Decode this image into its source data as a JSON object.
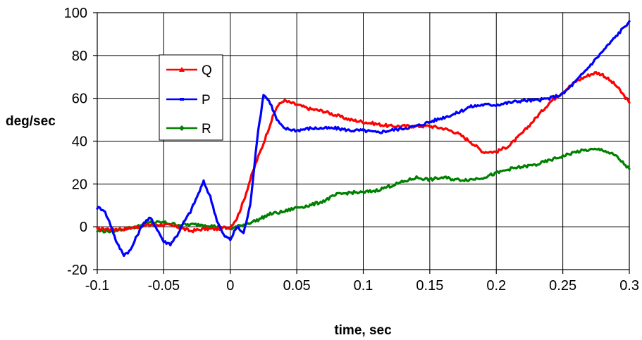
{
  "chart_data": {
    "type": "line",
    "title": "",
    "xlabel": "time, sec",
    "ylabel": "deg/sec",
    "xlim": [
      -0.1,
      0.3
    ],
    "ylim": [
      -20,
      100
    ],
    "xticks": [
      -0.1,
      -0.05,
      0,
      0.05,
      0.1,
      0.15,
      0.2,
      0.25,
      0.3
    ],
    "xtick_labels": [
      "-0.1",
      "-0.05",
      "0",
      "0.05",
      "0.1",
      "0.15",
      "0.2",
      "0.25",
      "0.3"
    ],
    "yticks": [
      -20,
      0,
      20,
      40,
      60,
      80,
      100
    ],
    "ytick_labels": [
      "-20",
      "0",
      "20",
      "40",
      "60",
      "80",
      "100"
    ],
    "grid": true,
    "legend_position": "upper-left",
    "series": [
      {
        "name": "Q",
        "color": "#ff0000",
        "marker": "triangle",
        "x": [
          -0.1,
          -0.09,
          -0.08,
          -0.07,
          -0.06,
          -0.05,
          -0.04,
          -0.03,
          -0.02,
          -0.01,
          0,
          0.005,
          0.01,
          0.015,
          0.02,
          0.025,
          0.03,
          0.035,
          0.04,
          0.05,
          0.06,
          0.07,
          0.08,
          0.09,
          0.1,
          0.11,
          0.12,
          0.13,
          0.14,
          0.15,
          0.16,
          0.17,
          0.18,
          0.19,
          0.2,
          0.21,
          0.22,
          0.23,
          0.24,
          0.25,
          0.26,
          0.27,
          0.275,
          0.28,
          0.29,
          0.3
        ],
        "values": [
          -1,
          -1,
          -1,
          0,
          1,
          1,
          0,
          -2,
          -1,
          -1,
          0,
          4,
          12,
          22,
          31,
          39,
          48,
          56,
          59,
          57,
          55,
          54,
          52,
          50,
          49,
          48,
          47,
          47,
          47,
          47,
          46,
          44,
          40,
          35,
          35,
          38,
          44,
          51,
          58,
          63,
          68,
          71,
          72,
          71,
          66,
          58
        ]
      },
      {
        "name": "P",
        "color": "#0000ff",
        "marker": "dash",
        "x": [
          -0.1,
          -0.095,
          -0.09,
          -0.085,
          -0.08,
          -0.075,
          -0.07,
          -0.065,
          -0.06,
          -0.055,
          -0.05,
          -0.045,
          -0.04,
          -0.035,
          -0.03,
          -0.025,
          -0.02,
          -0.015,
          -0.01,
          -0.005,
          0,
          0.005,
          0.01,
          0.015,
          0.02,
          0.025,
          0.03,
          0.035,
          0.04,
          0.05,
          0.06,
          0.07,
          0.08,
          0.09,
          0.1,
          0.11,
          0.12,
          0.13,
          0.14,
          0.15,
          0.16,
          0.17,
          0.18,
          0.19,
          0.2,
          0.21,
          0.22,
          0.23,
          0.24,
          0.25,
          0.26,
          0.27,
          0.28,
          0.29,
          0.3
        ],
        "values": [
          9,
          8,
          1,
          -8,
          -13,
          -11,
          -4,
          2,
          4,
          -1,
          -7,
          -8,
          -4,
          2,
          7,
          14,
          21,
          14,
          3,
          -4,
          -6,
          0,
          -3,
          10,
          40,
          62,
          58,
          50,
          46,
          45,
          46,
          46,
          46,
          45,
          45,
          44,
          45,
          46,
          47,
          49,
          51,
          53,
          56,
          57,
          57,
          58,
          59,
          59,
          60,
          62,
          68,
          75,
          82,
          89,
          96
        ]
      },
      {
        "name": "R",
        "color": "#008000",
        "marker": "diamond",
        "x": [
          -0.1,
          -0.09,
          -0.08,
          -0.07,
          -0.06,
          -0.05,
          -0.04,
          -0.03,
          -0.02,
          -0.01,
          0,
          0.01,
          0.02,
          0.03,
          0.04,
          0.05,
          0.06,
          0.07,
          0.08,
          0.09,
          0.1,
          0.11,
          0.12,
          0.13,
          0.14,
          0.15,
          0.16,
          0.17,
          0.18,
          0.19,
          0.2,
          0.21,
          0.22,
          0.23,
          0.24,
          0.25,
          0.26,
          0.27,
          0.28,
          0.29,
          0.3
        ],
        "values": [
          -2,
          -2,
          -1,
          0,
          2,
          2,
          1,
          1,
          1,
          0,
          -1,
          1,
          3,
          6,
          7,
          9,
          10,
          12,
          15,
          16,
          16,
          17,
          19,
          21,
          23,
          22,
          23,
          22,
          22,
          23,
          25,
          27,
          28,
          29,
          31,
          33,
          35,
          36,
          36,
          33,
          27
        ]
      }
    ]
  }
}
